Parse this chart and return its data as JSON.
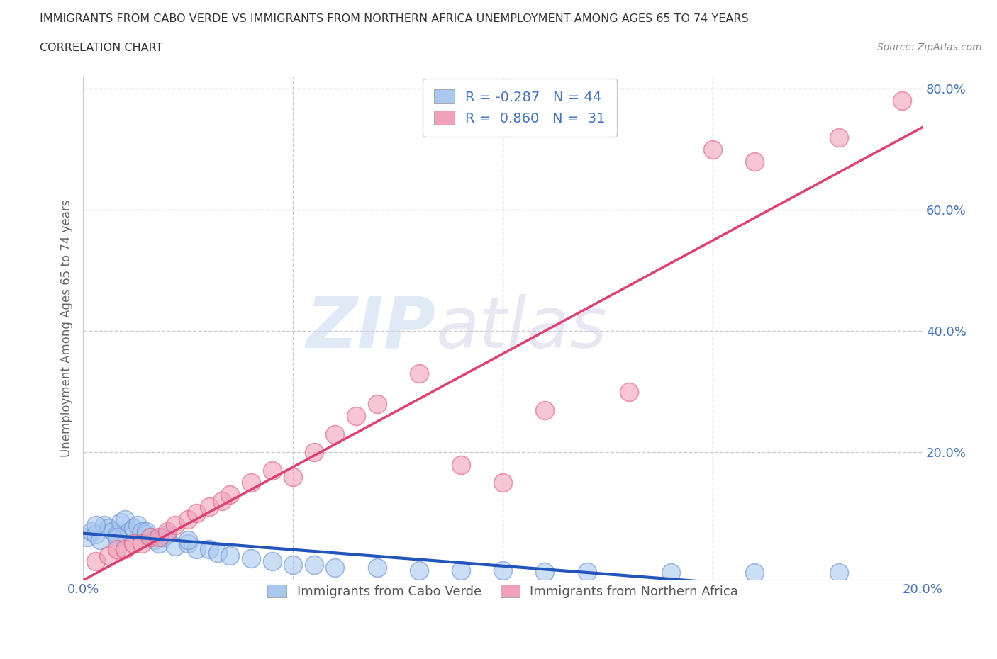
{
  "title_line1": "IMMIGRANTS FROM CABO VERDE VS IMMIGRANTS FROM NORTHERN AFRICA UNEMPLOYMENT AMONG AGES 65 TO 74 YEARS",
  "title_line2": "CORRELATION CHART",
  "source_text": "Source: ZipAtlas.com",
  "watermark_zip": "ZIP",
  "watermark_atlas": "atlas",
  "ylabel": "Unemployment Among Ages 65 to 74 years",
  "xlim": [
    0.0,
    0.2
  ],
  "ylim": [
    -0.01,
    0.82
  ],
  "xticks": [
    0.0,
    0.05,
    0.1,
    0.15,
    0.2
  ],
  "xtick_labels": [
    "0.0%",
    "",
    "",
    "",
    "20.0%"
  ],
  "yticks": [
    0.0,
    0.2,
    0.4,
    0.6,
    0.8
  ],
  "ytick_labels": [
    "",
    "20.0%",
    "40.0%",
    "60.0%",
    "80.0%"
  ],
  "blue_color": "#a8c8f0",
  "pink_color": "#f0a0b8",
  "blue_edge_color": "#7090d0",
  "pink_edge_color": "#e06080",
  "blue_line_color": "#2255bb",
  "pink_line_color": "#e04070",
  "R_blue": -0.287,
  "N_blue": 44,
  "R_pink": 0.86,
  "N_pink": 31,
  "cabo_verde_x": [
    0.001,
    0.002,
    0.003,
    0.004,
    0.005,
    0.006,
    0.007,
    0.008,
    0.009,
    0.01,
    0.011,
    0.012,
    0.013,
    0.014,
    0.015,
    0.016,
    0.017,
    0.018,
    0.019,
    0.02,
    0.022,
    0.025,
    0.027,
    0.03,
    0.032,
    0.035,
    0.04,
    0.045,
    0.05,
    0.055,
    0.06,
    0.07,
    0.08,
    0.09,
    0.1,
    0.11,
    0.12,
    0.14,
    0.16,
    0.18,
    0.003,
    0.008,
    0.015,
    0.025
  ],
  "cabo_verde_y": [
    0.06,
    0.07,
    0.065,
    0.055,
    0.08,
    0.075,
    0.07,
    0.065,
    0.085,
    0.09,
    0.07,
    0.075,
    0.08,
    0.07,
    0.065,
    0.06,
    0.055,
    0.05,
    0.06,
    0.065,
    0.045,
    0.05,
    0.04,
    0.04,
    0.035,
    0.03,
    0.025,
    0.02,
    0.015,
    0.015,
    0.01,
    0.01,
    0.005,
    0.005,
    0.005,
    0.003,
    0.003,
    0.002,
    0.002,
    0.002,
    0.08,
    0.06,
    0.07,
    0.055
  ],
  "northern_africa_x": [
    0.003,
    0.006,
    0.008,
    0.01,
    0.012,
    0.014,
    0.016,
    0.018,
    0.02,
    0.022,
    0.025,
    0.027,
    0.03,
    0.033,
    0.035,
    0.04,
    0.045,
    0.05,
    0.055,
    0.06,
    0.065,
    0.07,
    0.08,
    0.09,
    0.1,
    0.11,
    0.13,
    0.15,
    0.16,
    0.18,
    0.195
  ],
  "northern_africa_y": [
    0.02,
    0.03,
    0.04,
    0.04,
    0.05,
    0.05,
    0.06,
    0.06,
    0.07,
    0.08,
    0.09,
    0.1,
    0.11,
    0.12,
    0.13,
    0.15,
    0.17,
    0.16,
    0.2,
    0.23,
    0.26,
    0.28,
    0.33,
    0.18,
    0.15,
    0.27,
    0.3,
    0.7,
    0.68,
    0.72,
    0.78
  ],
  "grid_color": "#cccccc",
  "background_color": "#ffffff",
  "legend_blue_label": "Immigrants from Cabo Verde",
  "legend_pink_label": "Immigrants from Northern Africa",
  "axis_label_color": "#4472c4",
  "text_color_dark": "#333333",
  "r_value_color": "#4472c4"
}
